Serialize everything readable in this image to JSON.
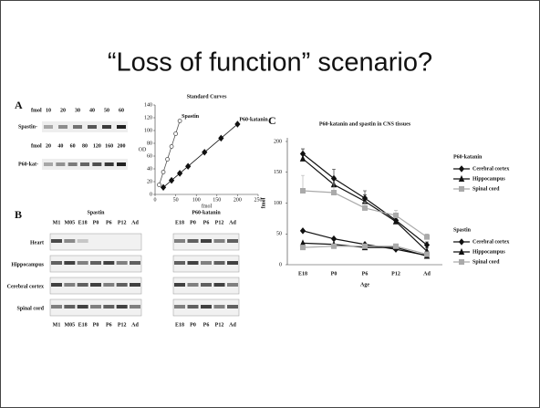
{
  "title": "“Loss of function” scenario?",
  "panel_a": {
    "label": "A",
    "rows": [
      {
        "unit": "fmol",
        "amounts": [
          "10",
          "20",
          "30",
          "40",
          "50",
          "60"
        ],
        "name": "Spastin-"
      },
      {
        "unit": "fmol",
        "amounts": [
          "20",
          "40",
          "60",
          "80",
          "120",
          "160",
          "200"
        ],
        "name": "P60-kat-"
      }
    ]
  },
  "panel_b": {
    "label": "B",
    "groups": [
      {
        "name": "Spastin",
        "lanes": [
          "M1",
          "M05",
          "E18",
          "P0",
          "P6",
          "P12",
          "Ad"
        ]
      },
      {
        "name": "P60-katanin",
        "lanes": [
          "E18",
          "P0",
          "P6",
          "P12",
          "Ad"
        ]
      }
    ],
    "tissues": [
      "Heart",
      "Hippocampus",
      "Cerebral cortex",
      "Spinal cord"
    ]
  },
  "panel_c_label": "C",
  "chart_data": [
    {
      "type": "line",
      "title": "Standard Curves",
      "x_label": "fmol",
      "y_label": "OD",
      "xlim": [
        0,
        250
      ],
      "xticks": [
        0,
        50,
        100,
        150,
        200,
        250
      ],
      "ylim": [
        0,
        140
      ],
      "yticks": [
        0,
        20,
        40,
        60,
        80,
        100,
        120,
        140
      ],
      "series": [
        {
          "name": "Spastin",
          "color": "#555555",
          "marker": "circle",
          "x": [
            10,
            20,
            30,
            40,
            50,
            60
          ],
          "values": [
            15,
            35,
            55,
            75,
            95,
            115
          ]
        },
        {
          "name": "P60-katanin",
          "color": "#111111",
          "marker": "diamond",
          "x": [
            20,
            40,
            60,
            80,
            120,
            160,
            200
          ],
          "values": [
            11,
            22,
            33,
            44,
            66,
            88,
            110
          ]
        }
      ]
    },
    {
      "type": "line",
      "title": "P60-katanin and  spastin in CNS tissues",
      "x_label": "Age",
      "y_label": "fmol",
      "categories": [
        "E18",
        "P0",
        "P6",
        "P12",
        "Ad"
      ],
      "ylim": [
        0,
        200
      ],
      "yticks": [
        0,
        50,
        100,
        150,
        200
      ],
      "legend_groups": [
        "P60-katanin",
        "Spastin"
      ],
      "series": [
        {
          "name": "Cerebral cortex",
          "group": 0,
          "color": "#111111",
          "marker": "diamond",
          "values": [
            180,
            140,
            108,
            72,
            32
          ],
          "errors": [
            8,
            15,
            12,
            10,
            5
          ]
        },
        {
          "name": "Hippocampus",
          "group": 0,
          "color": "#111111",
          "marker": "triangle",
          "values": [
            172,
            130,
            103,
            70,
            22
          ],
          "errors": [
            10,
            12,
            10,
            8,
            5
          ]
        },
        {
          "name": "Spinal cord",
          "group": 0,
          "color": "#aaaaaa",
          "marker": "square",
          "values": [
            120,
            117,
            92,
            80,
            45
          ],
          "errors": [
            25,
            15,
            10,
            8,
            5
          ]
        },
        {
          "name": "Cerebral cortex",
          "group": 1,
          "color": "#111111",
          "marker": "diamond",
          "values": [
            55,
            42,
            33,
            25,
            15
          ]
        },
        {
          "name": "Hippocampus",
          "group": 1,
          "color": "#111111",
          "marker": "triangle",
          "values": [
            35,
            33,
            28,
            28,
            14
          ]
        },
        {
          "name": "Spinal cord",
          "group": 1,
          "color": "#aaaaaa",
          "marker": "square",
          "values": [
            28,
            30,
            30,
            30,
            17
          ]
        }
      ]
    }
  ]
}
